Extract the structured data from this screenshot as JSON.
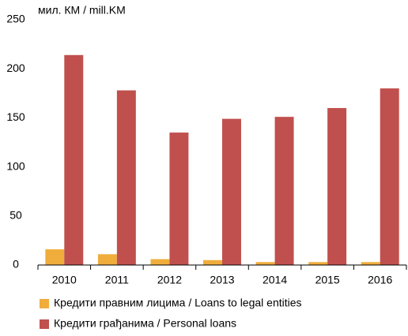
{
  "chart_data": {
    "type": "bar",
    "y_label": "мил. КМ / mill.KM",
    "categories": [
      "2010",
      "2011",
      "2012",
      "2013",
      "2014",
      "2015",
      "2016"
    ],
    "series": [
      {
        "name": "Кредити правним лицима / Loans to legal entities",
        "color": "#f0ad3c",
        "values": [
          16,
          11,
          6,
          5,
          3,
          3,
          3
        ]
      },
      {
        "name": "Кредити грађанима / Personal loans",
        "color": "#c0504d",
        "values": [
          214,
          178,
          135,
          149,
          151,
          160,
          180
        ]
      }
    ],
    "ylim": [
      0,
      250
    ],
    "yticks": [
      0,
      50,
      100,
      150,
      200,
      250
    ],
    "grid": false
  }
}
